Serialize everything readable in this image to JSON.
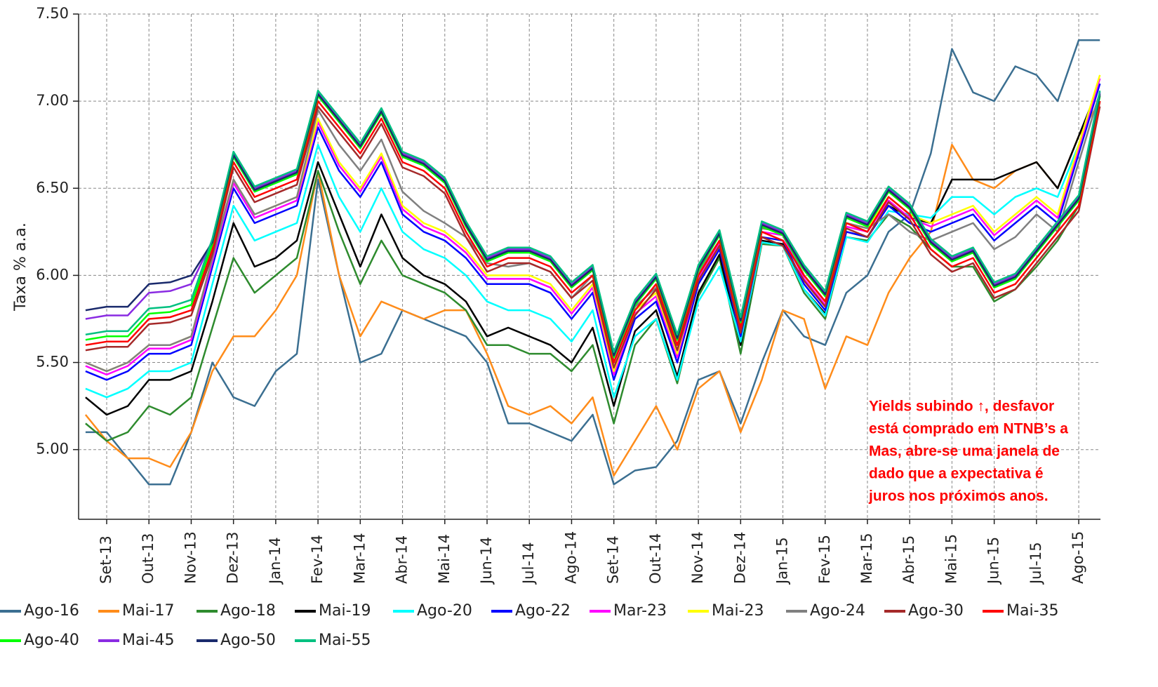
{
  "chart_data": {
    "type": "line",
    "y_label": "Taxa % a.a.",
    "categories": [
      null,
      "Set-13",
      null,
      "Out-13",
      null,
      "Nov-13",
      null,
      "Dez-13",
      null,
      "Jan-14",
      null,
      "Fev-14",
      null,
      "Mar-14",
      null,
      "Abr-14",
      null,
      "Mai-14",
      null,
      "Jun-14",
      null,
      "Jul-14",
      null,
      "Ago-14",
      null,
      "Set-14",
      null,
      "Out-14",
      null,
      "Nov-14",
      null,
      "Dez-14",
      null,
      "Jan-15",
      null,
      "Fev-15",
      null,
      "Mar-15",
      null,
      "Abr-15",
      null,
      "Mai-15",
      null,
      "Jun-15",
      null,
      "Jul-15",
      null,
      "Ago-15",
      null
    ],
    "ylim": [
      4.6,
      7.5
    ],
    "yticks": [
      {
        "value": 5.0,
        "label": "5.00"
      },
      {
        "value": 5.5,
        "label": "5.50"
      },
      {
        "value": 6.0,
        "label": "6.00"
      },
      {
        "value": 6.5,
        "label": "6.50"
      },
      {
        "value": 7.0,
        "label": "7.00"
      },
      {
        "value": 7.5,
        "label": "7.50"
      }
    ],
    "grid": true,
    "annotation": [
      "Yields subindo ↑, desfavor",
      "está comprado em NTNB’s a",
      "Mas, abre-se uma janela de",
      "dado que a expectativa é",
      "juros nos próximos anos."
    ],
    "series": [
      {
        "name": "Ago-16",
        "color": "#3b6f91",
        "values": [
          5.1,
          5.1,
          4.95,
          4.8,
          4.8,
          5.1,
          5.5,
          5.3,
          5.25,
          5.45,
          5.55,
          6.55,
          6.0,
          5.5,
          5.55,
          5.8,
          5.75,
          5.7,
          5.65,
          5.5,
          5.15,
          5.15,
          5.1,
          5.05,
          5.2,
          4.8,
          4.88,
          4.9,
          5.05,
          5.4,
          5.45,
          5.15,
          5.5,
          5.8,
          5.65,
          5.6,
          5.9,
          6.0,
          6.25,
          6.35,
          6.7,
          7.3,
          7.05,
          7.0,
          7.2,
          7.15,
          7.0,
          7.35,
          7.35
        ]
      },
      {
        "name": "Mai-17",
        "color": "#ff8c1a",
        "values": [
          5.2,
          5.05,
          4.95,
          4.95,
          4.9,
          5.1,
          5.45,
          5.65,
          5.65,
          5.8,
          6.0,
          6.6,
          6.0,
          5.65,
          5.85,
          5.8,
          5.75,
          5.8,
          5.8,
          5.55,
          5.25,
          5.2,
          5.25,
          5.15,
          5.3,
          4.85,
          5.05,
          5.25,
          5.0,
          5.35,
          5.45,
          5.1,
          5.4,
          5.8,
          5.75,
          5.35,
          5.65,
          5.6,
          5.9,
          6.1,
          6.25,
          6.75,
          6.55,
          6.5,
          6.6,
          6.65,
          6.5,
          6.8,
          7.0
        ]
      },
      {
        "name": "Ago-18",
        "color": "#2e8b2e",
        "values": [
          5.15,
          5.05,
          5.1,
          5.25,
          5.2,
          5.3,
          5.7,
          6.1,
          5.9,
          6.0,
          6.1,
          6.6,
          6.25,
          5.95,
          6.2,
          6.0,
          5.95,
          5.9,
          5.8,
          5.6,
          5.6,
          5.55,
          5.55,
          5.45,
          5.6,
          5.15,
          5.6,
          5.75,
          5.38,
          5.88,
          6.1,
          5.55,
          6.18,
          6.17,
          5.9,
          5.75,
          6.22,
          6.2,
          6.35,
          6.28,
          6.15,
          6.05,
          6.05,
          5.85,
          5.92,
          6.05,
          6.2,
          6.4,
          7.0
        ]
      },
      {
        "name": "Mai-19",
        "color": "#000000",
        "values": [
          5.3,
          5.2,
          5.25,
          5.4,
          5.4,
          5.45,
          5.85,
          6.3,
          6.05,
          6.1,
          6.2,
          6.65,
          6.35,
          6.05,
          6.35,
          6.1,
          6.0,
          5.95,
          5.85,
          5.65,
          5.7,
          5.65,
          5.6,
          5.5,
          5.7,
          5.25,
          5.68,
          5.8,
          5.42,
          5.9,
          6.12,
          5.6,
          6.2,
          6.18,
          5.92,
          5.78,
          6.25,
          6.22,
          6.4,
          6.33,
          6.3,
          6.55,
          6.55,
          6.55,
          6.6,
          6.65,
          6.5,
          6.8,
          7.1
        ]
      },
      {
        "name": "Ago-20",
        "color": "#00ffff",
        "values": [
          5.35,
          5.3,
          5.35,
          5.45,
          5.45,
          5.5,
          5.95,
          6.4,
          6.2,
          6.25,
          6.3,
          6.75,
          6.45,
          6.25,
          6.5,
          6.25,
          6.15,
          6.1,
          6.0,
          5.85,
          5.8,
          5.8,
          5.75,
          5.62,
          5.8,
          5.3,
          5.65,
          5.75,
          5.4,
          5.85,
          6.05,
          5.62,
          6.19,
          6.17,
          5.92,
          5.77,
          6.22,
          6.19,
          6.37,
          6.35,
          6.33,
          6.45,
          6.45,
          6.35,
          6.45,
          6.5,
          6.45,
          6.75,
          7.1
        ]
      },
      {
        "name": "Ago-22",
        "color": "#0000ff",
        "values": [
          5.45,
          5.4,
          5.45,
          5.55,
          5.55,
          5.6,
          6.05,
          6.5,
          6.3,
          6.35,
          6.4,
          6.85,
          6.6,
          6.45,
          6.65,
          6.35,
          6.25,
          6.2,
          6.1,
          5.95,
          5.95,
          5.95,
          5.9,
          5.75,
          5.9,
          5.4,
          5.75,
          5.85,
          5.5,
          5.95,
          6.15,
          5.65,
          6.22,
          6.2,
          5.95,
          5.8,
          6.25,
          6.22,
          6.4,
          6.3,
          6.25,
          6.3,
          6.35,
          6.2,
          6.3,
          6.4,
          6.3,
          6.7,
          7.1
        ]
      },
      {
        "name": "Mar-23",
        "color": "#ff00ff",
        "values": [
          5.48,
          5.43,
          5.48,
          5.58,
          5.58,
          5.63,
          6.08,
          6.53,
          6.33,
          6.38,
          6.43,
          6.88,
          6.63,
          6.48,
          6.68,
          6.38,
          6.28,
          6.23,
          6.13,
          5.98,
          5.98,
          5.98,
          5.93,
          5.78,
          5.93,
          5.43,
          5.78,
          5.88,
          5.53,
          5.98,
          6.18,
          5.68,
          6.25,
          6.23,
          5.98,
          5.83,
          6.28,
          6.25,
          6.43,
          6.33,
          6.28,
          6.33,
          6.38,
          6.23,
          6.33,
          6.43,
          6.33,
          6.73,
          7.13
        ]
      },
      {
        "name": "Mai-23",
        "color": "#ffff00",
        "values": [
          5.5,
          5.45,
          5.5,
          5.6,
          5.6,
          5.65,
          6.1,
          6.55,
          6.35,
          6.4,
          6.45,
          6.9,
          6.65,
          6.5,
          6.7,
          6.4,
          6.3,
          6.25,
          6.15,
          6.0,
          6.0,
          6.0,
          5.95,
          5.8,
          5.95,
          5.45,
          5.8,
          5.9,
          5.55,
          6.0,
          6.2,
          5.7,
          6.27,
          6.25,
          6.0,
          5.85,
          6.3,
          6.27,
          6.45,
          6.35,
          6.3,
          6.35,
          6.4,
          6.25,
          6.35,
          6.45,
          6.35,
          6.75,
          7.15
        ]
      },
      {
        "name": "Ago-24",
        "color": "#808080",
        "values": [
          5.5,
          5.45,
          5.5,
          5.6,
          5.6,
          5.65,
          6.1,
          6.55,
          6.35,
          6.4,
          6.45,
          6.95,
          6.75,
          6.6,
          6.78,
          6.48,
          6.37,
          6.3,
          6.22,
          6.07,
          6.05,
          6.07,
          6.02,
          5.87,
          6.0,
          5.5,
          5.82,
          5.93,
          5.57,
          6.02,
          6.2,
          5.7,
          6.27,
          6.25,
          6.0,
          5.85,
          6.3,
          6.27,
          6.35,
          6.25,
          6.2,
          6.25,
          6.3,
          6.15,
          6.22,
          6.35,
          6.25,
          6.65,
          7.05
        ]
      },
      {
        "name": "Ago-30",
        "color": "#a52a2a",
        "values": [
          5.57,
          5.59,
          5.59,
          5.72,
          5.73,
          5.77,
          6.12,
          6.62,
          6.42,
          6.47,
          6.52,
          6.97,
          6.82,
          6.67,
          6.87,
          6.62,
          6.57,
          6.47,
          6.22,
          6.02,
          6.07,
          6.07,
          6.02,
          5.87,
          5.97,
          5.47,
          5.77,
          5.92,
          5.57,
          5.97,
          6.17,
          5.67,
          6.22,
          6.17,
          5.97,
          5.82,
          6.27,
          6.22,
          6.42,
          6.32,
          6.12,
          6.02,
          6.07,
          5.87,
          5.92,
          6.07,
          6.22,
          6.37,
          6.97
        ]
      },
      {
        "name": "Mai-35",
        "color": "#ff0000",
        "values": [
          5.6,
          5.62,
          5.62,
          5.75,
          5.76,
          5.8,
          6.15,
          6.65,
          6.45,
          6.5,
          6.55,
          7.0,
          6.85,
          6.7,
          6.9,
          6.65,
          6.6,
          6.5,
          6.25,
          6.05,
          6.1,
          6.1,
          6.05,
          5.9,
          6.0,
          5.5,
          5.8,
          5.95,
          5.6,
          6.0,
          6.2,
          5.7,
          6.25,
          6.2,
          6.0,
          5.85,
          6.3,
          6.25,
          6.45,
          6.35,
          6.15,
          6.05,
          6.1,
          5.9,
          5.95,
          6.1,
          6.25,
          6.4,
          7.0
        ]
      },
      {
        "name": "Ago-40",
        "color": "#00ff00",
        "values": [
          5.63,
          5.65,
          5.65,
          5.78,
          5.79,
          5.83,
          6.18,
          6.68,
          6.48,
          6.53,
          6.58,
          7.03,
          6.88,
          6.73,
          6.93,
          6.68,
          6.63,
          6.53,
          6.28,
          6.08,
          6.13,
          6.13,
          6.08,
          5.93,
          6.03,
          5.53,
          5.83,
          5.98,
          5.63,
          6.03,
          6.23,
          5.73,
          6.28,
          6.23,
          6.03,
          5.88,
          6.33,
          6.28,
          6.48,
          6.38,
          6.18,
          6.08,
          6.13,
          5.93,
          5.98,
          6.13,
          6.28,
          6.43,
          7.03
        ]
      },
      {
        "name": "Mai-45",
        "color": "#8a2be2",
        "values": [
          5.75,
          5.77,
          5.77,
          5.9,
          5.91,
          5.95,
          6.2,
          6.7,
          6.5,
          6.55,
          6.6,
          7.05,
          6.9,
          6.75,
          6.95,
          6.7,
          6.65,
          6.55,
          6.3,
          6.1,
          6.15,
          6.15,
          6.1,
          5.95,
          6.05,
          5.55,
          5.85,
          6.0,
          5.65,
          6.05,
          6.25,
          5.75,
          6.3,
          6.25,
          6.05,
          5.9,
          6.35,
          6.3,
          6.5,
          6.4,
          6.2,
          6.1,
          6.15,
          5.95,
          6.0,
          6.15,
          6.3,
          6.45,
          7.05
        ]
      },
      {
        "name": "Ago-50",
        "color": "#1a2a6c",
        "values": [
          5.8,
          5.82,
          5.82,
          5.95,
          5.96,
          6.0,
          6.19,
          6.69,
          6.49,
          6.54,
          6.59,
          7.04,
          6.89,
          6.74,
          6.94,
          6.69,
          6.64,
          6.54,
          6.29,
          6.09,
          6.14,
          6.14,
          6.09,
          5.94,
          6.04,
          5.54,
          5.84,
          5.99,
          5.64,
          6.04,
          6.24,
          5.74,
          6.29,
          6.24,
          6.04,
          5.89,
          6.34,
          6.29,
          6.49,
          6.39,
          6.19,
          6.09,
          6.14,
          5.94,
          5.99,
          6.14,
          6.29,
          6.44,
          7.04
        ]
      },
      {
        "name": "Mai-55",
        "color": "#00c080",
        "values": [
          5.66,
          5.68,
          5.68,
          5.81,
          5.82,
          5.86,
          6.21,
          6.71,
          6.51,
          6.56,
          6.61,
          7.06,
          6.91,
          6.76,
          6.96,
          6.71,
          6.66,
          6.56,
          6.31,
          6.11,
          6.16,
          6.16,
          6.11,
          5.96,
          6.06,
          5.56,
          5.86,
          6.01,
          5.66,
          6.06,
          6.26,
          5.76,
          6.31,
          6.26,
          6.06,
          5.91,
          6.36,
          6.31,
          6.51,
          6.41,
          6.21,
          6.11,
          6.16,
          5.96,
          6.01,
          6.16,
          6.31,
          6.46,
          7.06
        ]
      }
    ]
  }
}
